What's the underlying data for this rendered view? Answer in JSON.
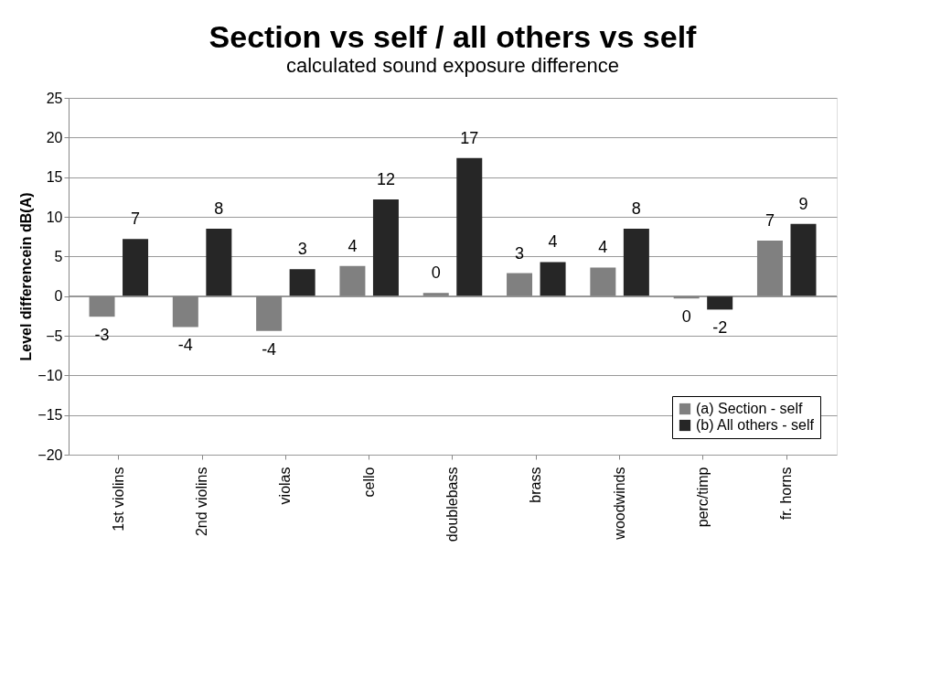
{
  "chart_data": {
    "type": "bar",
    "title": "Section vs self / all others vs self",
    "subtitle": "calculated sound exposure difference",
    "ylabel": "Level differencein dB(A)",
    "categories": [
      "1st violins",
      "2nd violins",
      "violas",
      "cello",
      "doublebass",
      "brass",
      "woodwinds",
      "perc/timp",
      "fr. horns"
    ],
    "series": [
      {
        "name": "(a) Section - self",
        "color": "#808080",
        "values": [
          -2.6,
          -3.9,
          -4.4,
          3.8,
          0.4,
          2.9,
          3.6,
          -0.3,
          7.0
        ],
        "value_labels": [
          "-3",
          "-4",
          "-4",
          "4",
          "0",
          "3",
          "4",
          "0",
          "7"
        ]
      },
      {
        "name": "(b) All others - self",
        "color": "#262626",
        "values": [
          7.2,
          8.5,
          3.4,
          12.2,
          17.4,
          4.3,
          8.5,
          -1.7,
          9.1
        ],
        "value_labels": [
          "7",
          "8",
          "3",
          "12",
          "17",
          "4",
          "8",
          "-2",
          "9"
        ]
      }
    ],
    "ylim": [
      -20,
      25
    ],
    "yticks": [
      -20,
      -15,
      -10,
      -5,
      0,
      5,
      10,
      15,
      20,
      25
    ],
    "grid": "y",
    "legend": "bottom right"
  }
}
